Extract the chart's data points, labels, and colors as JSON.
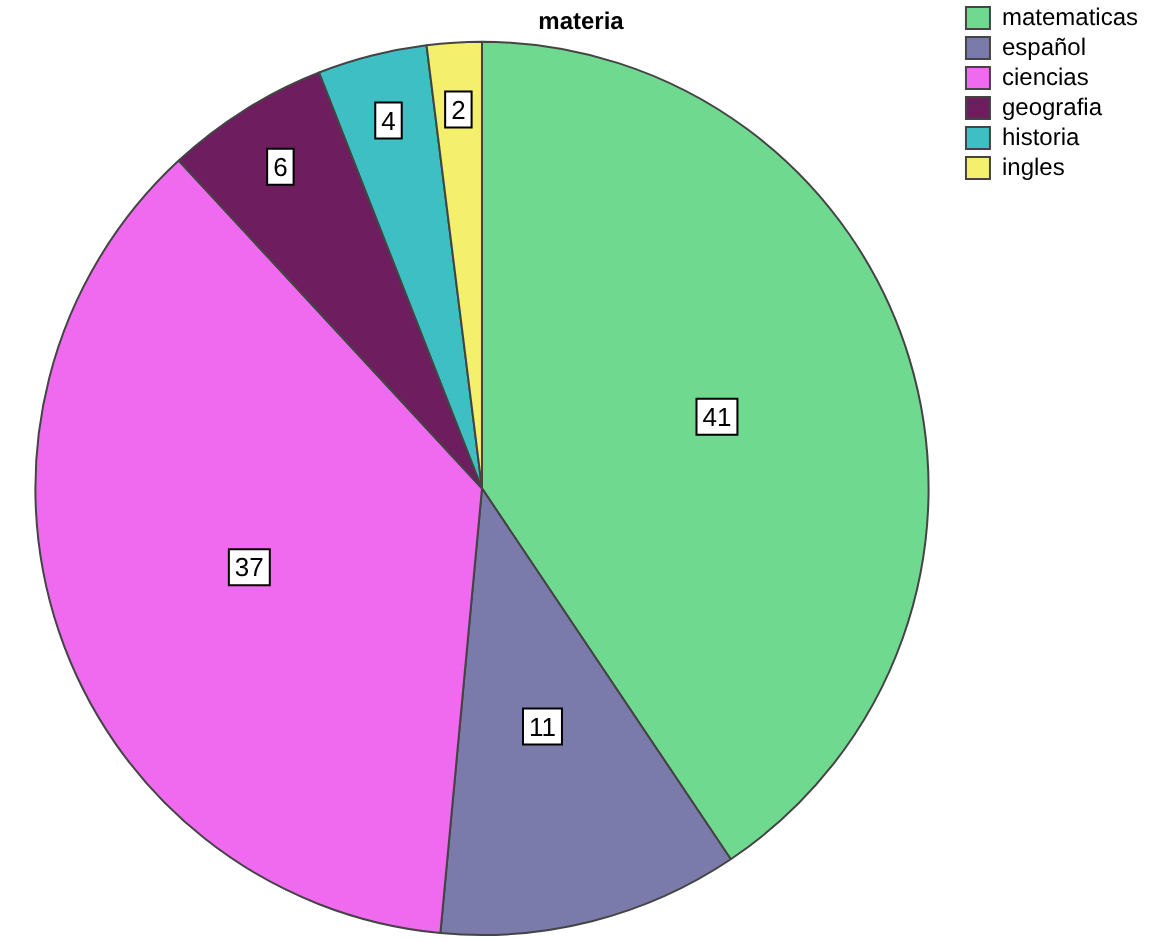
{
  "chart_data": {
    "type": "pie",
    "title": "materia",
    "categories": [
      "matematicas",
      "español",
      "ciencias",
      "geografia",
      "historia",
      "ingles"
    ],
    "values": [
      41,
      11,
      37,
      6,
      4,
      2
    ],
    "colors": [
      "#6fd990",
      "#7b7bab",
      "#f06af0",
      "#6e1d5f",
      "#3dbfc3",
      "#f4ef6c"
    ],
    "data_labels": true,
    "legend": "top right"
  }
}
